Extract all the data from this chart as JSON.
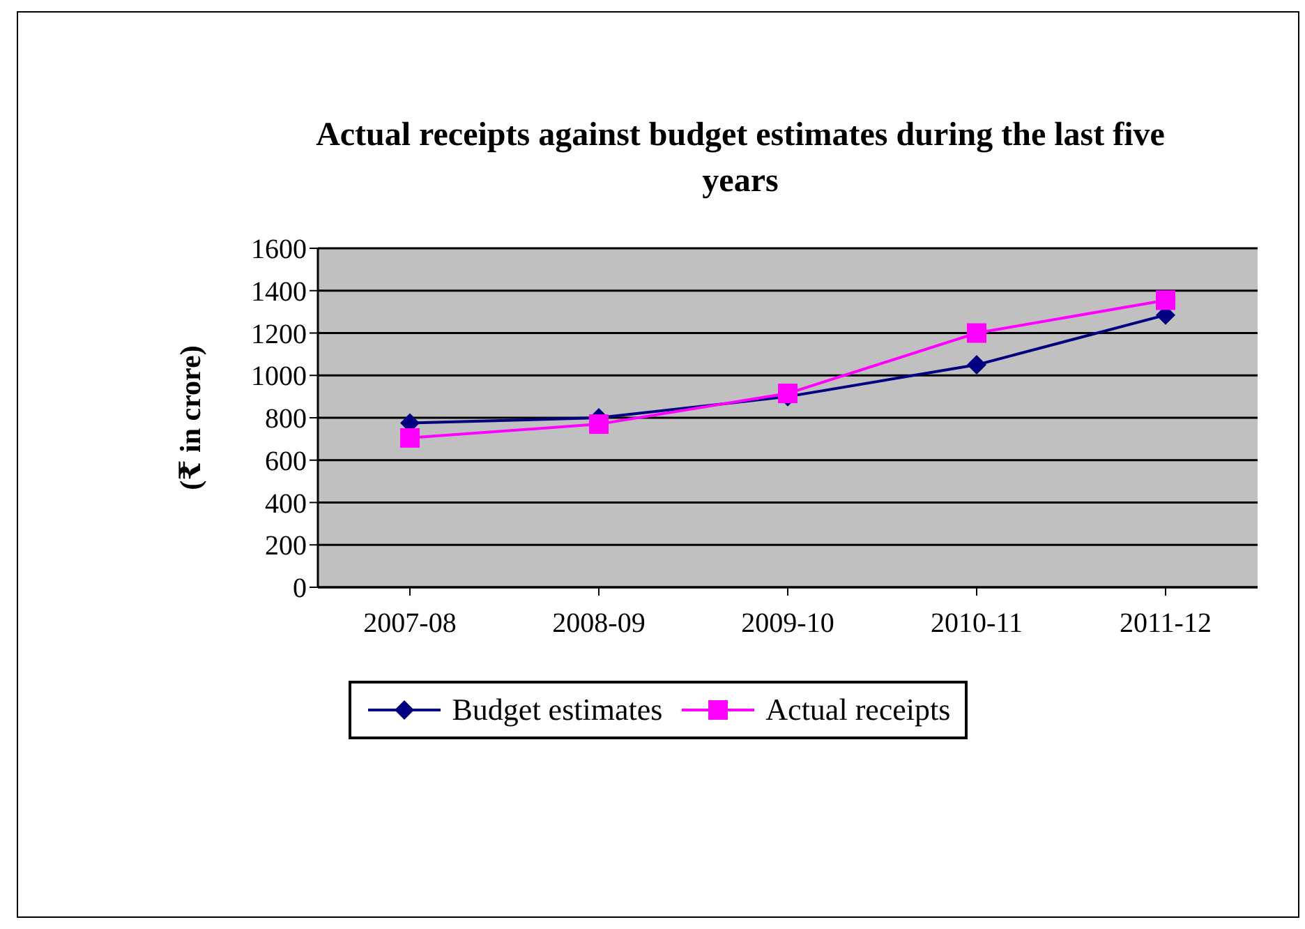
{
  "chart_data": {
    "type": "line",
    "title": "Actual receipts against budget estimates during the last five years",
    "ylabel": "(₹ in crore)",
    "categories": [
      "2007-08",
      "2008-09",
      "2009-10",
      "2010-11",
      "2011-12"
    ],
    "series": [
      {
        "name": "Budget estimates",
        "color": "#000080",
        "marker": "diamond",
        "values": [
          775,
          800,
          900,
          1050,
          1285
        ]
      },
      {
        "name": "Actual receipts",
        "color": "#ff00ff",
        "marker": "square",
        "values": [
          705,
          770,
          915,
          1200,
          1355
        ]
      }
    ],
    "ylim": [
      0,
      1600
    ],
    "yticks": [
      0,
      200,
      400,
      600,
      800,
      1000,
      1200,
      1400,
      1600
    ],
    "grid": "y",
    "legend": "bottom"
  }
}
